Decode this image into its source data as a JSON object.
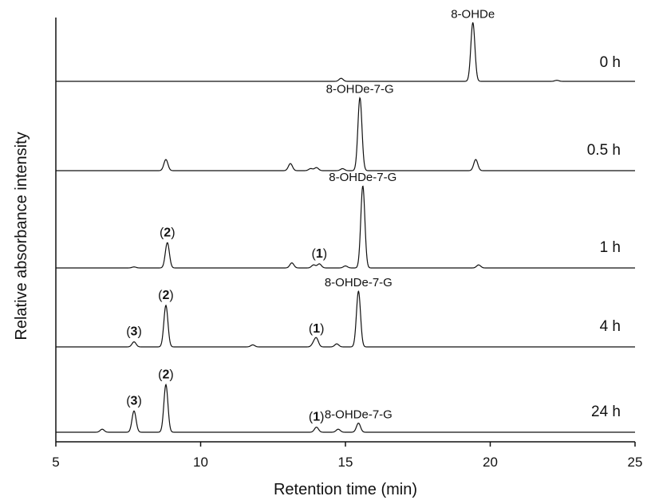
{
  "chart_data": {
    "type": "line",
    "title": "",
    "xlabel": "Retention time (min)",
    "ylabel": "Relative absorbance intensity",
    "xlim": [
      5,
      25
    ],
    "x_ticks": [
      "5",
      "10",
      "15",
      "20",
      "25"
    ],
    "x_tick_values": [
      5,
      10,
      15,
      20,
      25
    ],
    "grid": false,
    "series": [
      {
        "name": "0 h",
        "peaks": [
          {
            "x": 14.85,
            "height": 0.03
          },
          {
            "x": 19.4,
            "height": 0.58,
            "label": "8-OHDe"
          },
          {
            "x": 22.3,
            "height": 0.01
          }
        ]
      },
      {
        "name": "0.5 h",
        "peaks": [
          {
            "x": 8.8,
            "height": 0.11
          },
          {
            "x": 13.1,
            "height": 0.07
          },
          {
            "x": 13.8,
            "height": 0.02
          },
          {
            "x": 14.0,
            "height": 0.03
          },
          {
            "x": 14.9,
            "height": 0.02
          },
          {
            "x": 15.5,
            "height": 0.72,
            "label": "8-OHDe-7-G"
          },
          {
            "x": 19.5,
            "height": 0.11
          }
        ]
      },
      {
        "name": "1 h",
        "peaks": [
          {
            "x": 7.7,
            "height": 0.01
          },
          {
            "x": 8.85,
            "height": 0.25,
            "label": "2"
          },
          {
            "x": 13.15,
            "height": 0.05
          },
          {
            "x": 13.9,
            "height": 0.03
          },
          {
            "x": 14.1,
            "height": 0.04,
            "label": "1"
          },
          {
            "x": 15.0,
            "height": 0.02
          },
          {
            "x": 15.6,
            "height": 0.81,
            "label": "8-OHDe-7-G"
          },
          {
            "x": 19.6,
            "height": 0.03
          }
        ]
      },
      {
        "name": "4 h",
        "peaks": [
          {
            "x": 7.7,
            "height": 0.05,
            "label": "3"
          },
          {
            "x": 8.8,
            "height": 0.41,
            "label": "2"
          },
          {
            "x": 11.8,
            "height": 0.02
          },
          {
            "x": 13.9,
            "height": 0.03
          },
          {
            "x": 14.0,
            "height": 0.08,
            "label": "1"
          },
          {
            "x": 14.7,
            "height": 0.03
          },
          {
            "x": 15.45,
            "height": 0.55,
            "label": "8-OHDe-7-G"
          }
        ]
      },
      {
        "name": "24 h",
        "peaks": [
          {
            "x": 6.6,
            "height": 0.03
          },
          {
            "x": 7.7,
            "height": 0.21,
            "label": "3"
          },
          {
            "x": 8.8,
            "height": 0.47,
            "label": "2"
          },
          {
            "x": 14.0,
            "height": 0.05,
            "label": "1"
          },
          {
            "x": 14.75,
            "height": 0.03
          },
          {
            "x": 15.45,
            "height": 0.09,
            "label": "8-OHDe-7-G"
          }
        ]
      }
    ]
  }
}
